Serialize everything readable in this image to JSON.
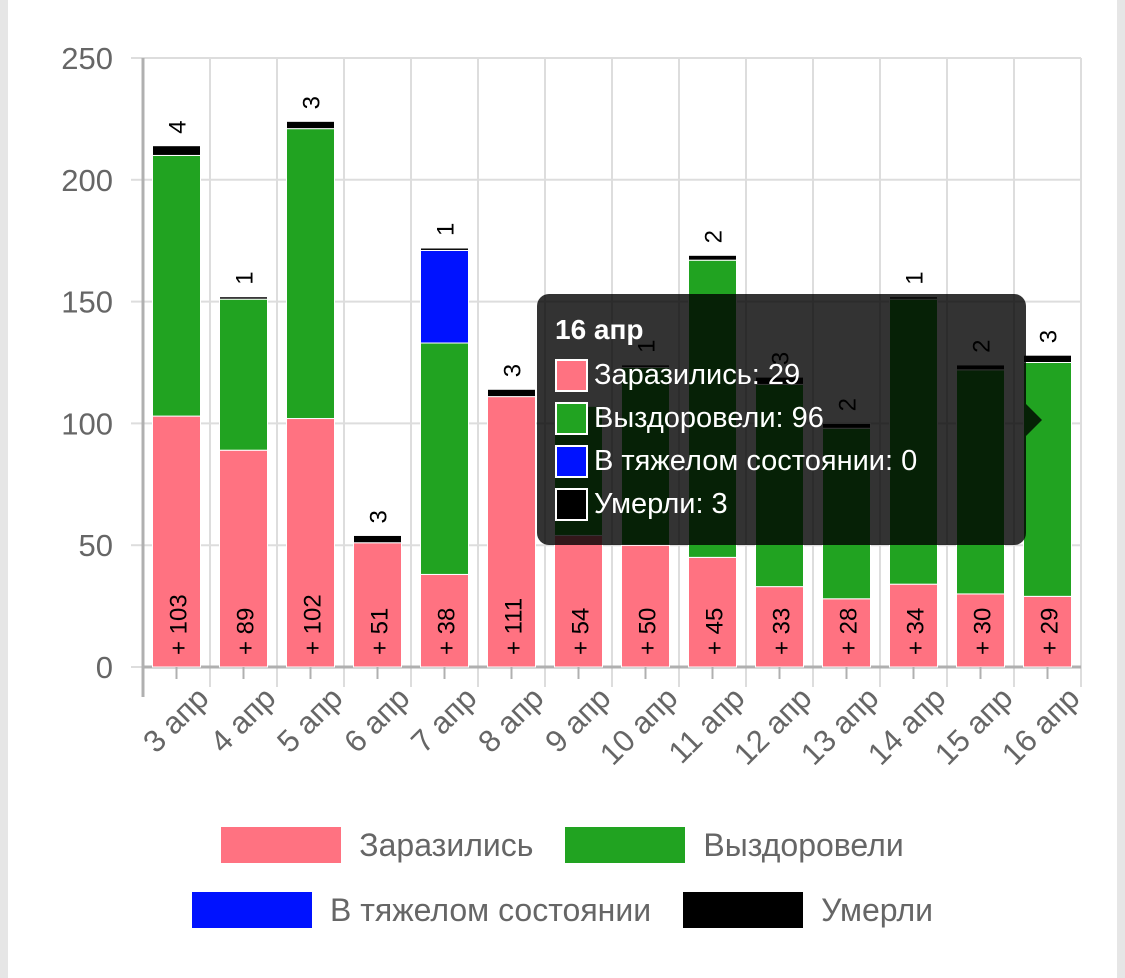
{
  "colors": {
    "infected": "#ff7281",
    "recovered": "#21a321",
    "severe": "#0012ff",
    "died": "#000000",
    "grid": "#dddddd",
    "axis": "#b0b0b0",
    "tick_text": "#666666"
  },
  "chart_data": {
    "type": "bar",
    "stacked": true,
    "categories": [
      "3 апр",
      "4 апр",
      "5 апр",
      "6 апр",
      "7 апр",
      "8 апр",
      "9 апр",
      "10 апр",
      "11 апр",
      "12 апр",
      "13 апр",
      "14 апр",
      "15 апр",
      "16 апр"
    ],
    "ylim": [
      0,
      250
    ],
    "yticks": [
      0,
      50,
      100,
      150,
      200,
      250
    ],
    "grid": true,
    "legend_position": "bottom",
    "series": [
      {
        "name": "Заразились",
        "color": "#ff7281",
        "values": [
          103,
          89,
          102,
          51,
          38,
          111,
          54,
          50,
          45,
          33,
          28,
          34,
          30,
          29
        ],
        "labels": [
          "+ 103",
          "+ 89",
          "+ 102",
          "+ 51",
          "+ 38",
          "+ 111",
          "+ 54",
          "+ 50",
          "+ 45",
          "+ 33",
          "+ 28",
          "+ 34",
          "+ 30",
          "+ 29"
        ]
      },
      {
        "name": "Выздоровели",
        "color": "#21a321",
        "values": [
          107,
          62,
          119,
          0,
          95,
          0,
          53,
          73,
          122,
          83,
          70,
          117,
          92,
          96
        ]
      },
      {
        "name": "В тяжелом состоянии",
        "color": "#0012ff",
        "values": [
          0,
          0,
          0,
          0,
          38,
          0,
          0,
          0,
          0,
          0,
          0,
          0,
          0,
          0
        ]
      },
      {
        "name": "Умерли",
        "color": "#000000",
        "values": [
          4,
          1,
          3,
          3,
          1,
          3,
          0,
          1,
          2,
          3,
          2,
          1,
          2,
          3
        ],
        "labels": [
          "4",
          "1",
          "3",
          "3",
          "1",
          "3",
          "",
          "1",
          "2",
          "3",
          "2",
          "1",
          "2",
          "3"
        ]
      }
    ]
  },
  "tooltip": {
    "title": "16 апр",
    "rows": [
      {
        "text": "Заразились: 29",
        "color": "#ff7281"
      },
      {
        "text": "Выздоровели: 96",
        "color": "#21a321"
      },
      {
        "text": "В тяжелом состоянии: 0",
        "color": "#0012ff"
      },
      {
        "text": "Умерли: 3",
        "color": "#000000"
      }
    ]
  },
  "legend": {
    "row1": [
      {
        "label": "Заразились",
        "color": "#ff7281"
      },
      {
        "label": "Выздоровели",
        "color": "#21a321"
      }
    ],
    "row2": [
      {
        "label": "В тяжелом состоянии",
        "color": "#0012ff"
      },
      {
        "label": "Умерли",
        "color": "#000000"
      }
    ]
  }
}
